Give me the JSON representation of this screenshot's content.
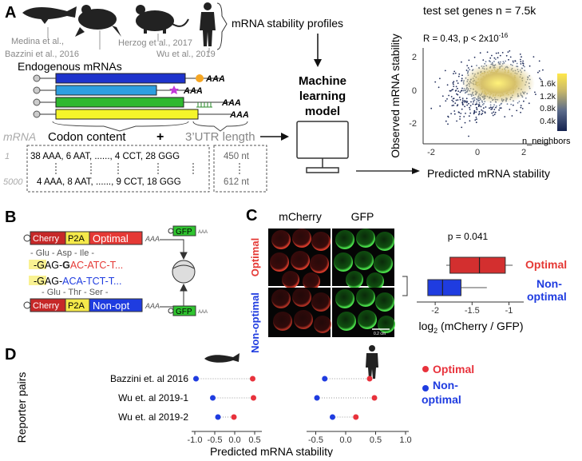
{
  "panelA": {
    "letter": "A",
    "sources": [
      "Medina et al.,",
      "Bazzini et al., 2016",
      "Herzog et al., 2017",
      "Wu et al., 2019"
    ],
    "profiles_label": "mRNA stability profiles",
    "endogenous_label": "Endogenous mRNAs",
    "polyA": "AAA",
    "mrna_label": "mRNA",
    "codon_label": "Codon content",
    "plus": "+",
    "utr_label": "3’UTR length",
    "row_ids": [
      "1",
      "5000"
    ],
    "codon_rows": [
      "38 AAA, 6 AAT, ......, 4 CCT, 28 GGG",
      "4 AAA, 8 AAT, ......, 9 CCT, 18 GGG"
    ],
    "utr_rows": [
      "450 nt",
      "612 nt"
    ],
    "model_label": [
      "Machine",
      "learning",
      "model"
    ]
  },
  "scatter": {
    "title": "test set genes n = 7.5k",
    "annotation": "R = 0.43, p < 2x10",
    "annotation_exp": "-16",
    "xlabel": "Predicted mRNA stability",
    "ylabel": "Observed mRNA stability",
    "x_ticks": [
      "-2",
      "0",
      "2"
    ],
    "y_ticks": [
      "2",
      "0",
      "-2"
    ],
    "colorbar_ticks": [
      "1.6k",
      "1.2k",
      "0.8k",
      "0.4k"
    ],
    "colorbar_label": "n_neighbors",
    "colors": {
      "low": "#1a2a5e",
      "high": "#ffe84a"
    }
  },
  "panelB": {
    "letter": "B",
    "cherry": "Cherry",
    "p2a": "P2A",
    "optimal": "Optimal",
    "non_opt": "Non-opt",
    "gfp": "GFP",
    "polyA": "AAA",
    "aa_top": "- Glu - Asp - Ile -",
    "seq_top": [
      "-GAG-",
      "G",
      "AC-ATC-T..."
    ],
    "seq_bottom": [
      "-GAG-",
      "ACA-TCT-T..."
    ],
    "aa_bottom": "- Glu - Thr - Ser -"
  },
  "panelC": {
    "letter": "C",
    "col_labels": [
      "mCherry",
      "GFP"
    ],
    "row_labels": [
      "Optimal",
      "Non-optimal"
    ],
    "scale_bar": "0.2 cm",
    "pvalue": "p = 0.041",
    "xlabel": "log",
    "xlabel_sub": "2",
    "xlabel_rest": " (mCherry / GFP)",
    "x_ticks": [
      "-2",
      "-1.5",
      "-1"
    ],
    "legend": [
      "Optimal",
      "Non-",
      "optimal"
    ],
    "chart_data": {
      "type": "box",
      "series": [
        {
          "name": "Optimal",
          "whisker_low": -1.85,
          "q1": -1.8,
          "median": -1.4,
          "q3": -1.05,
          "whisker_high": -0.95
        },
        {
          "name": "Non-optimal",
          "whisker_low": -2.1,
          "q1": -2.1,
          "median": -1.9,
          "q3": -1.65,
          "whisker_high": -1.3
        }
      ]
    }
  },
  "panelD": {
    "letter": "D",
    "ylabel": "Reporter pairs",
    "xlabel": "Predicted mRNA stability",
    "rows": [
      "Bazzini et. al 2016",
      "Wu et. al 2019-1",
      "Wu et. al 2019-2"
    ],
    "left_ticks": [
      "-1.0",
      "-0.5",
      "0.0",
      "0.5"
    ],
    "right_ticks": [
      "-0.5",
      "0.0",
      "0.5",
      "1.0"
    ],
    "legend": [
      "Optimal",
      "Non-",
      "optimal"
    ],
    "colors": {
      "optimal": "#e8323c",
      "nonoptimal": "#1f3ce0"
    },
    "chart_data": [
      {
        "type": "dot",
        "species": "zebrafish",
        "categories": [
          "Bazzini et. al 2016",
          "Wu et. al 2019-1",
          "Wu et. al 2019-2"
        ],
        "series": [
          {
            "name": "Optimal",
            "values": [
              0.45,
              0.47,
              -0.02
            ]
          },
          {
            "name": "Non-optimal",
            "values": [
              -0.97,
              -0.55,
              -0.42
            ]
          }
        ],
        "xlim": [
          -1.0,
          0.6
        ]
      },
      {
        "type": "dot",
        "species": "human",
        "categories": [
          "Bazzini et. al 2016",
          "Wu et. al 2019-1",
          "Wu et. al 2019-2"
        ],
        "series": [
          {
            "name": "Optimal",
            "values": [
              0.4,
              0.48,
              0.17
            ]
          },
          {
            "name": "Non-optimal",
            "values": [
              -0.35,
              -0.48,
              -0.22
            ]
          }
        ],
        "xlim": [
          -0.6,
          1.0
        ]
      }
    ]
  }
}
